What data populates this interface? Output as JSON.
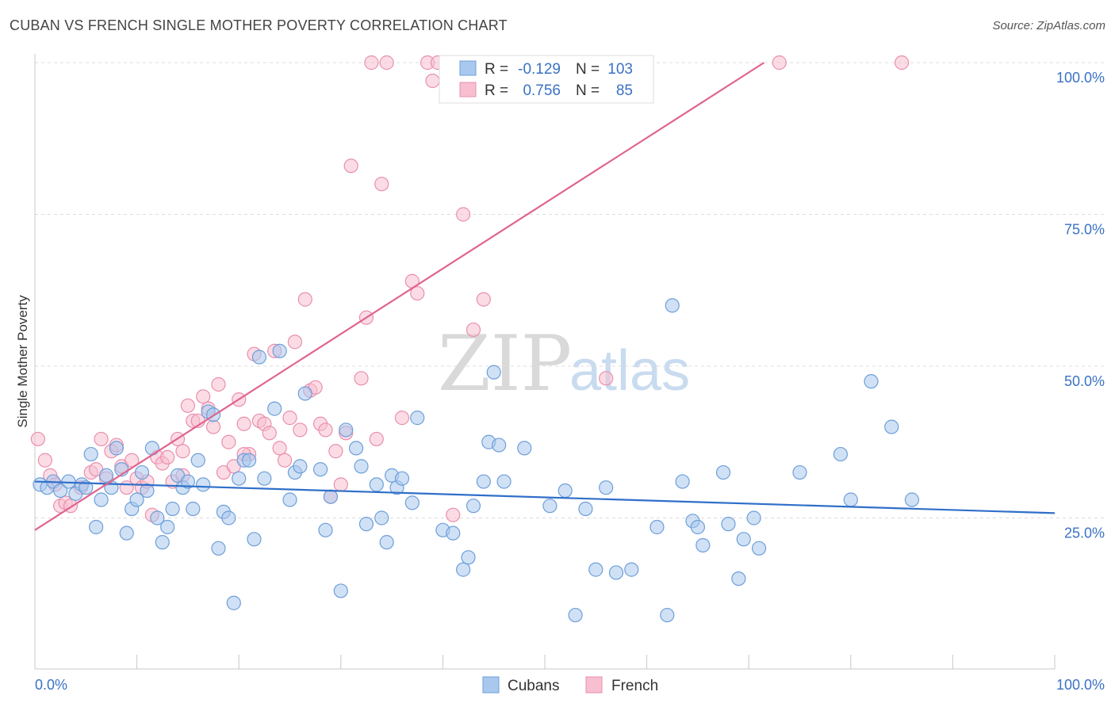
{
  "header": {
    "title": "CUBAN VS FRENCH SINGLE MOTHER POVERTY CORRELATION CHART",
    "source": "Source: ZipAtlas.com"
  },
  "watermark": {
    "zip": "ZIP",
    "atlas": "atlas"
  },
  "colors": {
    "cubans_fill": "#a9c8ee",
    "cubans_stroke": "#6e9fd8",
    "cubans_line": "#2f6fc9",
    "french_fill": "#f7bfd0",
    "french_stroke": "#e98fae",
    "french_line": "#e0648e",
    "axis_label": "#3a72c4"
  },
  "legend_top": {
    "rows": [
      {
        "r_label": "R = ",
        "r_value": "-0.129",
        "n_label": "N = ",
        "n_value": "103"
      },
      {
        "r_label": "R = ",
        "r_value": "0.756",
        "n_label": "N = ",
        "n_value": "85"
      }
    ]
  },
  "legend_bottom": {
    "cubans": "Cubans",
    "french": "French"
  },
  "chart_data": {
    "type": "scatter",
    "title": "CUBAN VS FRENCH SINGLE MOTHER POVERTY CORRELATION CHART",
    "xlabel": "",
    "ylabel": "Single Mother Poverty",
    "xlim": [
      0,
      100
    ],
    "ylim": [
      0,
      100
    ],
    "x_tick_labels": [
      "0.0%",
      "100.0%"
    ],
    "y_tick_labels": [
      "25.0%",
      "50.0%",
      "75.0%",
      "100.0%"
    ],
    "y_ticks": [
      25,
      50,
      75,
      100
    ],
    "grid": true,
    "legend": "top-center",
    "series": [
      {
        "name": "Cubans",
        "trend": {
          "x": [
            0,
            100
          ],
          "y": [
            31.0,
            25.8
          ]
        },
        "points": [
          [
            0.5,
            30.5
          ],
          [
            1.2,
            30.0
          ],
          [
            1.8,
            31.0
          ],
          [
            2.5,
            29.5
          ],
          [
            3.3,
            31.0
          ],
          [
            4.0,
            29.0
          ],
          [
            4.6,
            30.5
          ],
          [
            5.0,
            30.0
          ],
          [
            5.5,
            35.5
          ],
          [
            6.0,
            23.5
          ],
          [
            6.5,
            28.0
          ],
          [
            7.0,
            32.0
          ],
          [
            7.5,
            30.0
          ],
          [
            8.0,
            36.5
          ],
          [
            8.5,
            33.0
          ],
          [
            9.0,
            22.5
          ],
          [
            9.5,
            26.5
          ],
          [
            10.0,
            28.0
          ],
          [
            10.5,
            32.5
          ],
          [
            11.0,
            29.5
          ],
          [
            11.5,
            36.5
          ],
          [
            12.0,
            25.0
          ],
          [
            12.5,
            21.0
          ],
          [
            13.0,
            23.5
          ],
          [
            13.5,
            26.5
          ],
          [
            14.0,
            32.0
          ],
          [
            14.5,
            30.0
          ],
          [
            15.0,
            31.0
          ],
          [
            15.5,
            26.5
          ],
          [
            16.0,
            34.5
          ],
          [
            16.5,
            30.5
          ],
          [
            17.0,
            42.5
          ],
          [
            17.5,
            42.0
          ],
          [
            18.0,
            20.0
          ],
          [
            18.5,
            26.0
          ],
          [
            19.0,
            25.0
          ],
          [
            19.5,
            11.0
          ],
          [
            20.0,
            31.5
          ],
          [
            20.5,
            34.5
          ],
          [
            21.0,
            34.5
          ],
          [
            21.5,
            21.5
          ],
          [
            22.0,
            51.5
          ],
          [
            22.5,
            31.5
          ],
          [
            23.5,
            43.0
          ],
          [
            24.0,
            52.5
          ],
          [
            25.0,
            28.0
          ],
          [
            25.5,
            32.5
          ],
          [
            26.0,
            33.5
          ],
          [
            26.5,
            45.5
          ],
          [
            28.0,
            33.0
          ],
          [
            28.5,
            23.0
          ],
          [
            29.0,
            28.5
          ],
          [
            30.0,
            13.0
          ],
          [
            30.5,
            39.5
          ],
          [
            31.5,
            36.5
          ],
          [
            32.0,
            33.5
          ],
          [
            32.5,
            24.0
          ],
          [
            33.5,
            30.5
          ],
          [
            34.0,
            25.0
          ],
          [
            34.5,
            21.0
          ],
          [
            35.0,
            32.0
          ],
          [
            35.5,
            30.0
          ],
          [
            36.0,
            31.5
          ],
          [
            37.0,
            27.5
          ],
          [
            37.5,
            41.5
          ],
          [
            40.0,
            23.0
          ],
          [
            41.0,
            22.5
          ],
          [
            42.0,
            16.5
          ],
          [
            42.5,
            18.5
          ],
          [
            43.0,
            27.0
          ],
          [
            44.0,
            31.0
          ],
          [
            44.5,
            37.5
          ],
          [
            45.0,
            49.0
          ],
          [
            45.5,
            37.0
          ],
          [
            46.0,
            31.0
          ],
          [
            48.0,
            36.5
          ],
          [
            50.5,
            27.0
          ],
          [
            52.0,
            29.5
          ],
          [
            53.0,
            9.0
          ],
          [
            54.0,
            26.5
          ],
          [
            55.0,
            16.5
          ],
          [
            56.0,
            30.0
          ],
          [
            57.0,
            16.0
          ],
          [
            58.5,
            16.5
          ],
          [
            61.0,
            23.5
          ],
          [
            62.0,
            9.0
          ],
          [
            62.5,
            60.0
          ],
          [
            63.5,
            31.0
          ],
          [
            64.5,
            24.5
          ],
          [
            65.0,
            23.5
          ],
          [
            65.5,
            20.5
          ],
          [
            67.5,
            32.5
          ],
          [
            68.0,
            24.0
          ],
          [
            69.0,
            15.0
          ],
          [
            69.5,
            21.5
          ],
          [
            70.5,
            25.0
          ],
          [
            71.0,
            20.0
          ],
          [
            75.0,
            32.5
          ],
          [
            79.0,
            35.5
          ],
          [
            80.0,
            28.0
          ],
          [
            82.0,
            47.5
          ],
          [
            84.0,
            40.0
          ],
          [
            86.0,
            28.0
          ]
        ]
      },
      {
        "name": "French",
        "trend": {
          "x": [
            0,
            71.5
          ],
          "y": [
            23.0,
            100.0
          ]
        },
        "points": [
          [
            0.3,
            38.0
          ],
          [
            1.0,
            34.5
          ],
          [
            1.5,
            32.0
          ],
          [
            2.0,
            30.5
          ],
          [
            2.5,
            27.0
          ],
          [
            3.0,
            27.5
          ],
          [
            3.5,
            27.0
          ],
          [
            4.5,
            30.0
          ],
          [
            5.5,
            32.5
          ],
          [
            6.0,
            33.0
          ],
          [
            6.5,
            38.0
          ],
          [
            7.0,
            31.5
          ],
          [
            7.5,
            36.0
          ],
          [
            8.0,
            37.0
          ],
          [
            8.5,
            33.5
          ],
          [
            9.0,
            30.0
          ],
          [
            9.5,
            34.5
          ],
          [
            10.0,
            31.5
          ],
          [
            10.5,
            30.0
          ],
          [
            11.0,
            31.0
          ],
          [
            11.5,
            25.5
          ],
          [
            12.0,
            35.0
          ],
          [
            12.5,
            34.0
          ],
          [
            13.0,
            35.0
          ],
          [
            13.5,
            31.0
          ],
          [
            14.0,
            38.0
          ],
          [
            14.5,
            36.0
          ],
          [
            15.0,
            43.5
          ],
          [
            15.5,
            41.0
          ],
          [
            16.0,
            41.0
          ],
          [
            16.5,
            45.0
          ],
          [
            17.0,
            43.0
          ],
          [
            17.5,
            40.0
          ],
          [
            18.0,
            47.0
          ],
          [
            18.5,
            32.5
          ],
          [
            19.0,
            37.5
          ],
          [
            19.5,
            33.5
          ],
          [
            20.0,
            44.5
          ],
          [
            20.5,
            40.5
          ],
          [
            21.0,
            35.5
          ],
          [
            21.5,
            52.0
          ],
          [
            22.0,
            41.0
          ],
          [
            22.5,
            40.5
          ],
          [
            23.0,
            39.0
          ],
          [
            23.5,
            52.5
          ],
          [
            24.0,
            36.5
          ],
          [
            24.5,
            34.5
          ],
          [
            25.0,
            41.5
          ],
          [
            25.5,
            54.0
          ],
          [
            26.0,
            39.5
          ],
          [
            26.5,
            61.0
          ],
          [
            27.0,
            46.0
          ],
          [
            28.0,
            40.5
          ],
          [
            28.5,
            39.5
          ],
          [
            29.0,
            28.5
          ],
          [
            29.5,
            36.0
          ],
          [
            30.0,
            30.5
          ],
          [
            30.5,
            39.0
          ],
          [
            31.0,
            83.0
          ],
          [
            32.0,
            48.0
          ],
          [
            32.5,
            58.0
          ],
          [
            33.5,
            38.0
          ],
          [
            34.0,
            80.0
          ],
          [
            34.5,
            100.0
          ],
          [
            36.0,
            41.5
          ],
          [
            37.0,
            64.0
          ],
          [
            37.5,
            62.0
          ],
          [
            38.5,
            100.0
          ],
          [
            39.0,
            97.0
          ],
          [
            39.5,
            100.0
          ],
          [
            41.0,
            25.5
          ],
          [
            42.0,
            75.0
          ],
          [
            43.0,
            56.0
          ],
          [
            44.0,
            61.0
          ],
          [
            52.0,
            100.0
          ],
          [
            56.0,
            48.0
          ],
          [
            73.0,
            100.0
          ],
          [
            85.0,
            100.0
          ],
          [
            53.5,
            100.0
          ],
          [
            40.5,
            100.0
          ],
          [
            14.5,
            32.0
          ],
          [
            20.5,
            35.5
          ],
          [
            27.5,
            46.5
          ],
          [
            33.0,
            100.0
          ],
          [
            45.0,
            100.0
          ]
        ]
      }
    ]
  }
}
